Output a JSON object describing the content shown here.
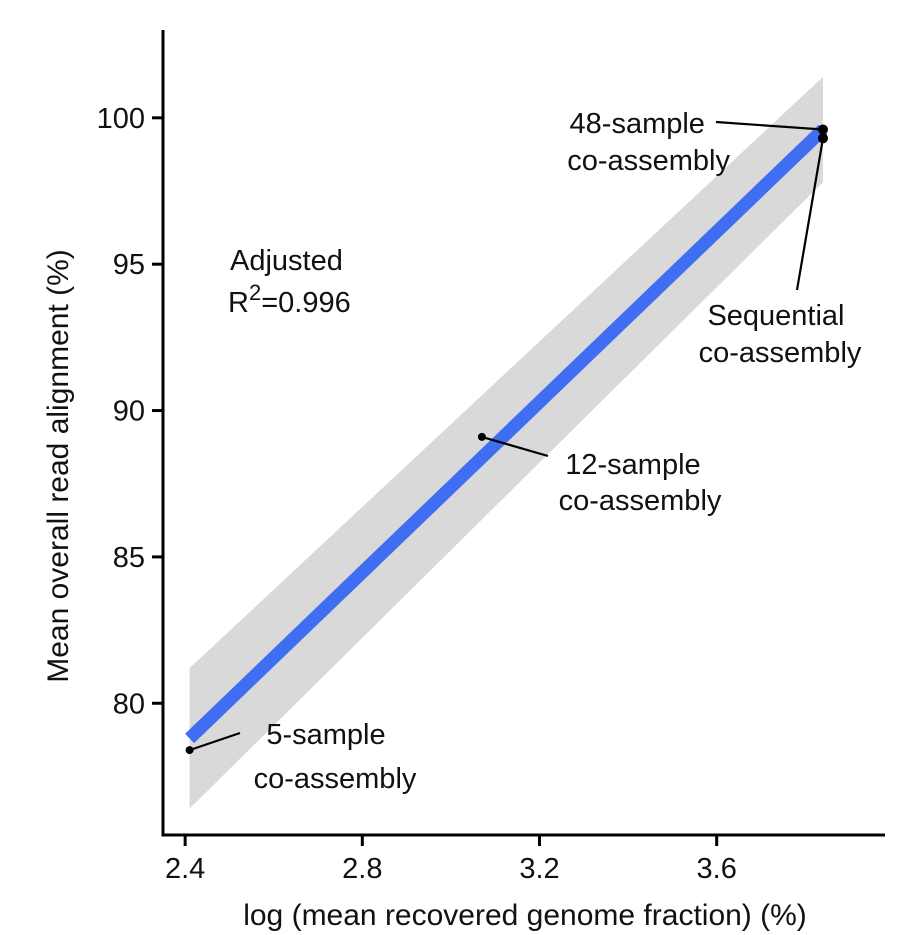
{
  "chart_data": {
    "type": "scatter",
    "xlabel": "log (mean recovered genome fraction) (%)",
    "ylabel": "Mean overall read alignment (%)",
    "xlim": [
      2.35,
      3.98
    ],
    "ylim": [
      75.5,
      103.0
    ],
    "xticks": [
      2.4,
      2.8,
      3.2,
      3.6
    ],
    "yticks": [
      80,
      85,
      90,
      95,
      100
    ],
    "xtick_labels": [
      "2.4",
      "2.8",
      "3.2",
      "3.6"
    ],
    "ytick_labels": [
      "80",
      "85",
      "90",
      "95",
      "100"
    ],
    "grid": false,
    "points": [
      {
        "x": 2.41,
        "y": 78.4,
        "label": [
          "5-sample",
          "co-assembly"
        ]
      },
      {
        "x": 3.07,
        "y": 89.1,
        "label": [
          "12-sample",
          "co-assembly"
        ]
      },
      {
        "x": 3.84,
        "y": 99.6,
        "label": [
          "48-sample",
          "co-assembly"
        ]
      },
      {
        "x": 3.84,
        "y": 99.3,
        "label": [
          "Sequential",
          "co-assembly"
        ]
      }
    ],
    "fit": {
      "x": [
        2.41,
        3.84
      ],
      "y": [
        78.8,
        99.6
      ],
      "ci_upper": [
        81.2,
        101.4
      ],
      "ci_lower": [
        76.4,
        97.8
      ],
      "color": "#3f6ef2",
      "ci_color": "#d9d9d9"
    },
    "annotation": {
      "line1": "Adjusted",
      "r_prefix": "R",
      "r_sup": "2",
      "r_value": "=0.996"
    }
  }
}
